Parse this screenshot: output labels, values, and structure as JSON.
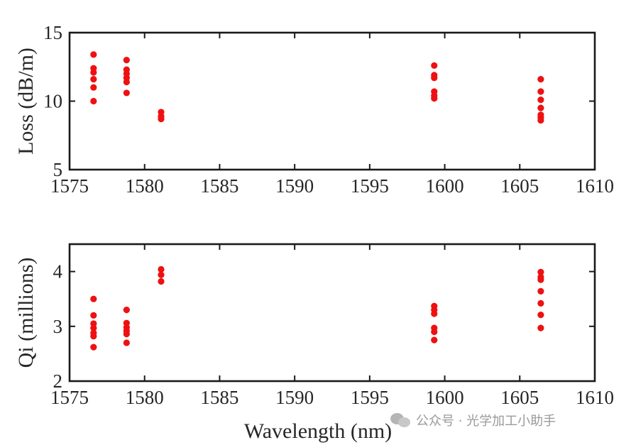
{
  "chart_data": [
    {
      "type": "scatter",
      "xlabel": "",
      "ylabel": "Loss  (dB/m)",
      "xlim": [
        1575,
        1610
      ],
      "ylim": [
        5,
        15
      ],
      "xticks": [
        "1575",
        "1580",
        "1585",
        "1590",
        "1595",
        "1600",
        "1605",
        "1610"
      ],
      "yticks": [
        "5",
        "10",
        "15"
      ],
      "grid": false,
      "marker_color": "#ee1111",
      "series": [
        {
          "points": [
            [
              1576.6,
              13.4
            ],
            [
              1576.6,
              12.4
            ],
            [
              1576.6,
              12.1
            ],
            [
              1576.6,
              11.6
            ],
            [
              1576.6,
              11.0
            ],
            [
              1576.6,
              10.0
            ],
            [
              1578.8,
              13.0
            ],
            [
              1578.8,
              12.3
            ],
            [
              1578.8,
              12.0
            ],
            [
              1578.8,
              11.7
            ],
            [
              1578.8,
              11.4
            ],
            [
              1578.8,
              10.6
            ],
            [
              1581.1,
              9.2
            ],
            [
              1581.1,
              8.9
            ],
            [
              1581.1,
              8.7
            ],
            [
              1599.3,
              12.6
            ],
            [
              1599.3,
              11.9
            ],
            [
              1599.3,
              11.7
            ],
            [
              1599.3,
              10.7
            ],
            [
              1599.3,
              10.4
            ],
            [
              1599.3,
              10.2
            ],
            [
              1606.4,
              11.6
            ],
            [
              1606.4,
              10.7
            ],
            [
              1606.4,
              10.1
            ],
            [
              1606.4,
              9.5
            ],
            [
              1606.4,
              9.0
            ],
            [
              1606.4,
              8.8
            ],
            [
              1606.4,
              8.6
            ]
          ]
        }
      ]
    },
    {
      "type": "scatter",
      "xlabel": "Wavelength  (nm)",
      "ylabel": "Qi (millions)",
      "xlim": [
        1575,
        1610
      ],
      "ylim": [
        2,
        4.5
      ],
      "xticks": [
        "1575",
        "1580",
        "1585",
        "1590",
        "1595",
        "1600",
        "1605",
        "1610"
      ],
      "yticks": [
        "2",
        "3",
        "4"
      ],
      "grid": false,
      "marker_color": "#ee1111",
      "series": [
        {
          "points": [
            [
              1576.6,
              3.5
            ],
            [
              1576.6,
              3.2
            ],
            [
              1576.6,
              3.05
            ],
            [
              1576.6,
              2.97
            ],
            [
              1576.6,
              2.88
            ],
            [
              1576.6,
              2.82
            ],
            [
              1576.6,
              2.62
            ],
            [
              1578.8,
              3.3
            ],
            [
              1578.8,
              3.06
            ],
            [
              1578.8,
              2.98
            ],
            [
              1578.8,
              2.92
            ],
            [
              1578.8,
              2.86
            ],
            [
              1578.8,
              2.7
            ],
            [
              1581.1,
              4.04
            ],
            [
              1581.1,
              3.94
            ],
            [
              1581.1,
              3.82
            ],
            [
              1599.3,
              3.37
            ],
            [
              1599.3,
              3.3
            ],
            [
              1599.3,
              3.23
            ],
            [
              1599.3,
              2.97
            ],
            [
              1599.3,
              2.9
            ],
            [
              1599.3,
              2.75
            ],
            [
              1606.4,
              3.99
            ],
            [
              1606.4,
              3.9
            ],
            [
              1606.4,
              3.85
            ],
            [
              1606.4,
              3.64
            ],
            [
              1606.4,
              3.42
            ],
            [
              1606.4,
              3.21
            ],
            [
              1606.4,
              2.97
            ]
          ]
        }
      ]
    }
  ],
  "watermark": {
    "icon": "wechat-icon",
    "text": "公众号 · 光学加工小助手"
  }
}
